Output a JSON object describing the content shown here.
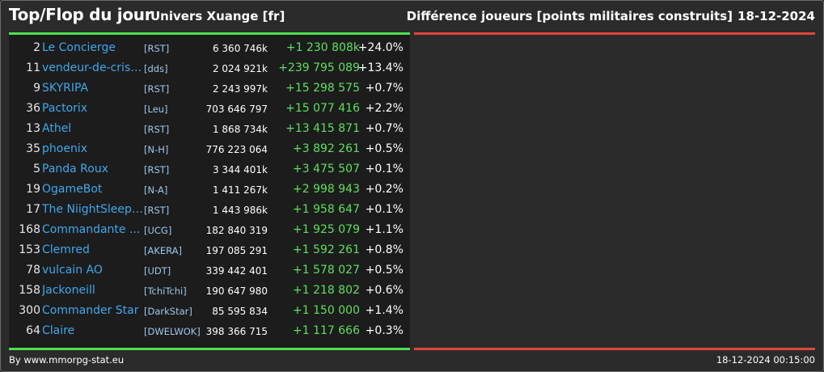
{
  "header": {
    "title": "Top/Flop du jour",
    "universe": "Univers Xuange [fr]",
    "metric": "Différence joueurs [points militaires construits]",
    "date": "18-12-2024"
  },
  "colors": {
    "top_accent": "#4ee04e",
    "flop_accent": "#e0463c",
    "player_name": "#3fa8ec",
    "positive_diff": "#5de05d"
  },
  "top_rows": [
    {
      "rank": "2",
      "name": "Le Concierge",
      "tag": "[RST]",
      "points": "6 360 746k",
      "diff": "+1 230 808k",
      "pct": "+24.0%"
    },
    {
      "rank": "11",
      "name": "vendeur-de-crista...",
      "tag": "[dds]",
      "points": "2 024 921k",
      "diff": "+239 795 089",
      "pct": "+13.4%"
    },
    {
      "rank": "9",
      "name": "SKYRIPA",
      "tag": "[RST]",
      "points": "2 243 997k",
      "diff": "+15 298 575",
      "pct": "+0.7%"
    },
    {
      "rank": "36",
      "name": "Pactorix",
      "tag": "[Leu]",
      "points": "703 646 797",
      "diff": "+15 077 416",
      "pct": "+2.2%"
    },
    {
      "rank": "13",
      "name": "Athel",
      "tag": "[RST]",
      "points": "1 868 734k",
      "diff": "+13 415 871",
      "pct": "+0.7%"
    },
    {
      "rank": "35",
      "name": "phoenix",
      "tag": "[N-H]",
      "points": "776 223 064",
      "diff": "+3 892 261",
      "pct": "+0.5%"
    },
    {
      "rank": "5",
      "name": "Panda Roux",
      "tag": "[RST]",
      "points": "3 344 401k",
      "diff": "+3 475 507",
      "pct": "+0.1%"
    },
    {
      "rank": "19",
      "name": "OgameBot",
      "tag": "[N-A]",
      "points": "1 411 267k",
      "diff": "+2 998 943",
      "pct": "+0.2%"
    },
    {
      "rank": "17",
      "name": "The NiightSleepe...",
      "tag": "[RST]",
      "points": "1 443 986k",
      "diff": "+1 958 647",
      "pct": "+0.1%"
    },
    {
      "rank": "168",
      "name": "Commandante ...",
      "tag": "[UCG]",
      "points": "182 840 319",
      "diff": "+1 925 079",
      "pct": "+1.1%"
    },
    {
      "rank": "153",
      "name": "Clemred",
      "tag": "[AKERA]",
      "points": "197 085 291",
      "diff": "+1 592 261",
      "pct": "+0.8%"
    },
    {
      "rank": "78",
      "name": "vulcain AO",
      "tag": "[UDT]",
      "points": "339 442 401",
      "diff": "+1 578 027",
      "pct": "+0.5%"
    },
    {
      "rank": "158",
      "name": "Jackoneill",
      "tag": "[TchiTchi]",
      "points": "190 647 980",
      "diff": "+1 218 802",
      "pct": "+0.6%"
    },
    {
      "rank": "300",
      "name": "Commander Star",
      "tag": "[DarkStar]",
      "points": "85 595 834",
      "diff": "+1 150 000",
      "pct": "+1.4%"
    },
    {
      "rank": "64",
      "name": "Claire",
      "tag": "[DWELWOK]",
      "points": "398 366 715",
      "diff": "+1 117 666",
      "pct": "+0.3%"
    }
  ],
  "footer": {
    "credit": "By www.mmorpg-stat.eu",
    "timestamp": "18-12-2024 00:15:00"
  }
}
